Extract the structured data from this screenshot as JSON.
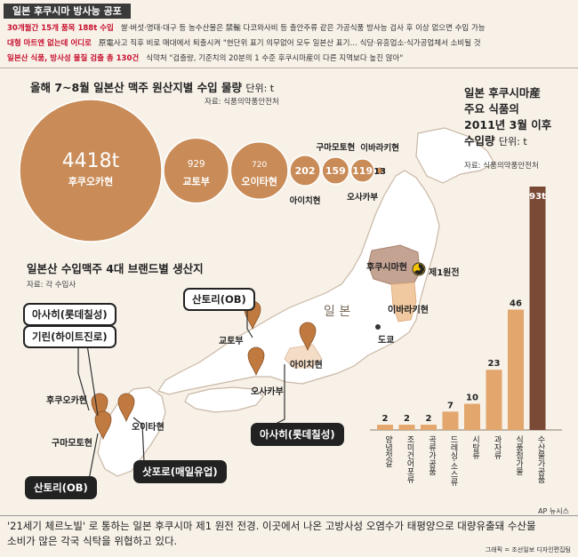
{
  "header": {
    "tag": "일본 후쿠시마 방사능 공포",
    "headlines": [
      {
        "label": "30개월간 15개 품목 188t 수입",
        "text": "쌀·버섯·명태·대구 등 농수산물은 禁輸    다코와사비 등 출안주류 같은 가공식품    방사능 검사 후 이상 없으면 수입 가능"
      },
      {
        "label": "대형 마트엔 없는데 어디로",
        "text": "原電사고 직후 비로 매대에서 퇴출시켜    \"현단위 표기 의무없어 모두 일본산 표기…    식당·유흥업소·식가공업체서 소비될 것"
      },
      {
        "label": "일본산 식품, 방사성 물질 검출 총 130건",
        "text": "식약처 \"검출량, 기준치의 20분의 1 수준    후쿠시마産이 다른 지역보다 높진 않아\""
      }
    ]
  },
  "bubble_section": {
    "title": "올해 7~8월 일본산 맥주 원산지별 수입 물량",
    "unit": "단위: t",
    "source": "자료: 식품의약품안전처"
  },
  "brand_section": {
    "title": "일본산 수입맥주 4대 브랜드별 생산지",
    "source": "자료: 각 수입사"
  },
  "bar_section": {
    "title_lines": [
      "일본 후쿠시마産",
      "주요 식품의",
      "2011년 3월 이후",
      "수입량"
    ],
    "unit": "단위: t",
    "source": "자료: 식품의약품안전처"
  },
  "map": {
    "country_label": "일 본",
    "plant_label": "제1원전",
    "region_labels": {
      "fukushima": "후쿠시마현",
      "ibaraki": "이바라키현",
      "tokyo": "도쿄",
      "kyoto": "교토부",
      "osaka": "오사카부",
      "aichi": "아이치현",
      "fukuoka": "후쿠오카현",
      "kumamoto": "구마모토현",
      "oita": "오이타현"
    },
    "callouts": {
      "suntory_kyoto": "산토리(OB)",
      "asahi_kirin_1": "아사히(롯데칠성)",
      "asahi_kirin_2": "기린(하이트진로)",
      "asahi_aichi": "아사히(롯데칠성)",
      "sapporo": "삿포로(매일유업)",
      "suntory_kumamoto": "산토리(OB)"
    }
  },
  "chart_data": [
    {
      "type": "bubble",
      "title": "올해 7~8월 일본산 맥주 원산지별 수입 물량",
      "unit": "t",
      "categories": [
        "후쿠오카현",
        "교토부",
        "오이타현",
        "아이치현",
        "구마모토현",
        "오사카부",
        "이바라키현"
      ],
      "values": [
        4418,
        929,
        720,
        202,
        159,
        119,
        13
      ],
      "value_labels": [
        "4418t",
        "929",
        "720",
        "202",
        "159",
        "119",
        "13"
      ]
    },
    {
      "type": "bar",
      "title": "일본 후쿠시마産 주요 식품의 2011년 3월 이후 수입량",
      "unit": "t",
      "categories": [
        "양념젓갈",
        "조미건어포류",
        "곡류가공품",
        "드레싱·소스류",
        "시탕류",
        "과자류",
        "식품첨가물",
        "수산물가공품"
      ],
      "values": [
        2,
        2,
        2,
        7,
        10,
        23,
        46,
        93
      ],
      "value_labels": [
        "2",
        "2",
        "2",
        "7",
        "10",
        "23",
        "46",
        "93t"
      ],
      "ylim": [
        0,
        93
      ]
    }
  ],
  "footer": {
    "caption": "'21세기 체르노빌' 로 통하는 일본 후쿠시마 제1 원전 전경. 이곳에서 나온 고방사성 오염수가 태평양으로 대량유출돼 수산물 소비가 많은 각국 식탁을 위협하고 있다.",
    "photo_credit": "AP 뉴시스",
    "graphic_credit": "그래픽 = 조선일보 디자인편집팀"
  },
  "colors": {
    "bubble_fill": "#c98b57",
    "bubble_stroke": "#ffffff",
    "bar_fill": "#e3a66d",
    "bar_top_fill": "#7a4a36",
    "map_fill": "#ffffff",
    "map_stroke": "#c9b8a6",
    "fukushima_fill": "#c4a393",
    "ibaraki_fill": "#f1c9a0",
    "headline_red": "#c8102e",
    "pin_fill": "#c07a3f"
  }
}
